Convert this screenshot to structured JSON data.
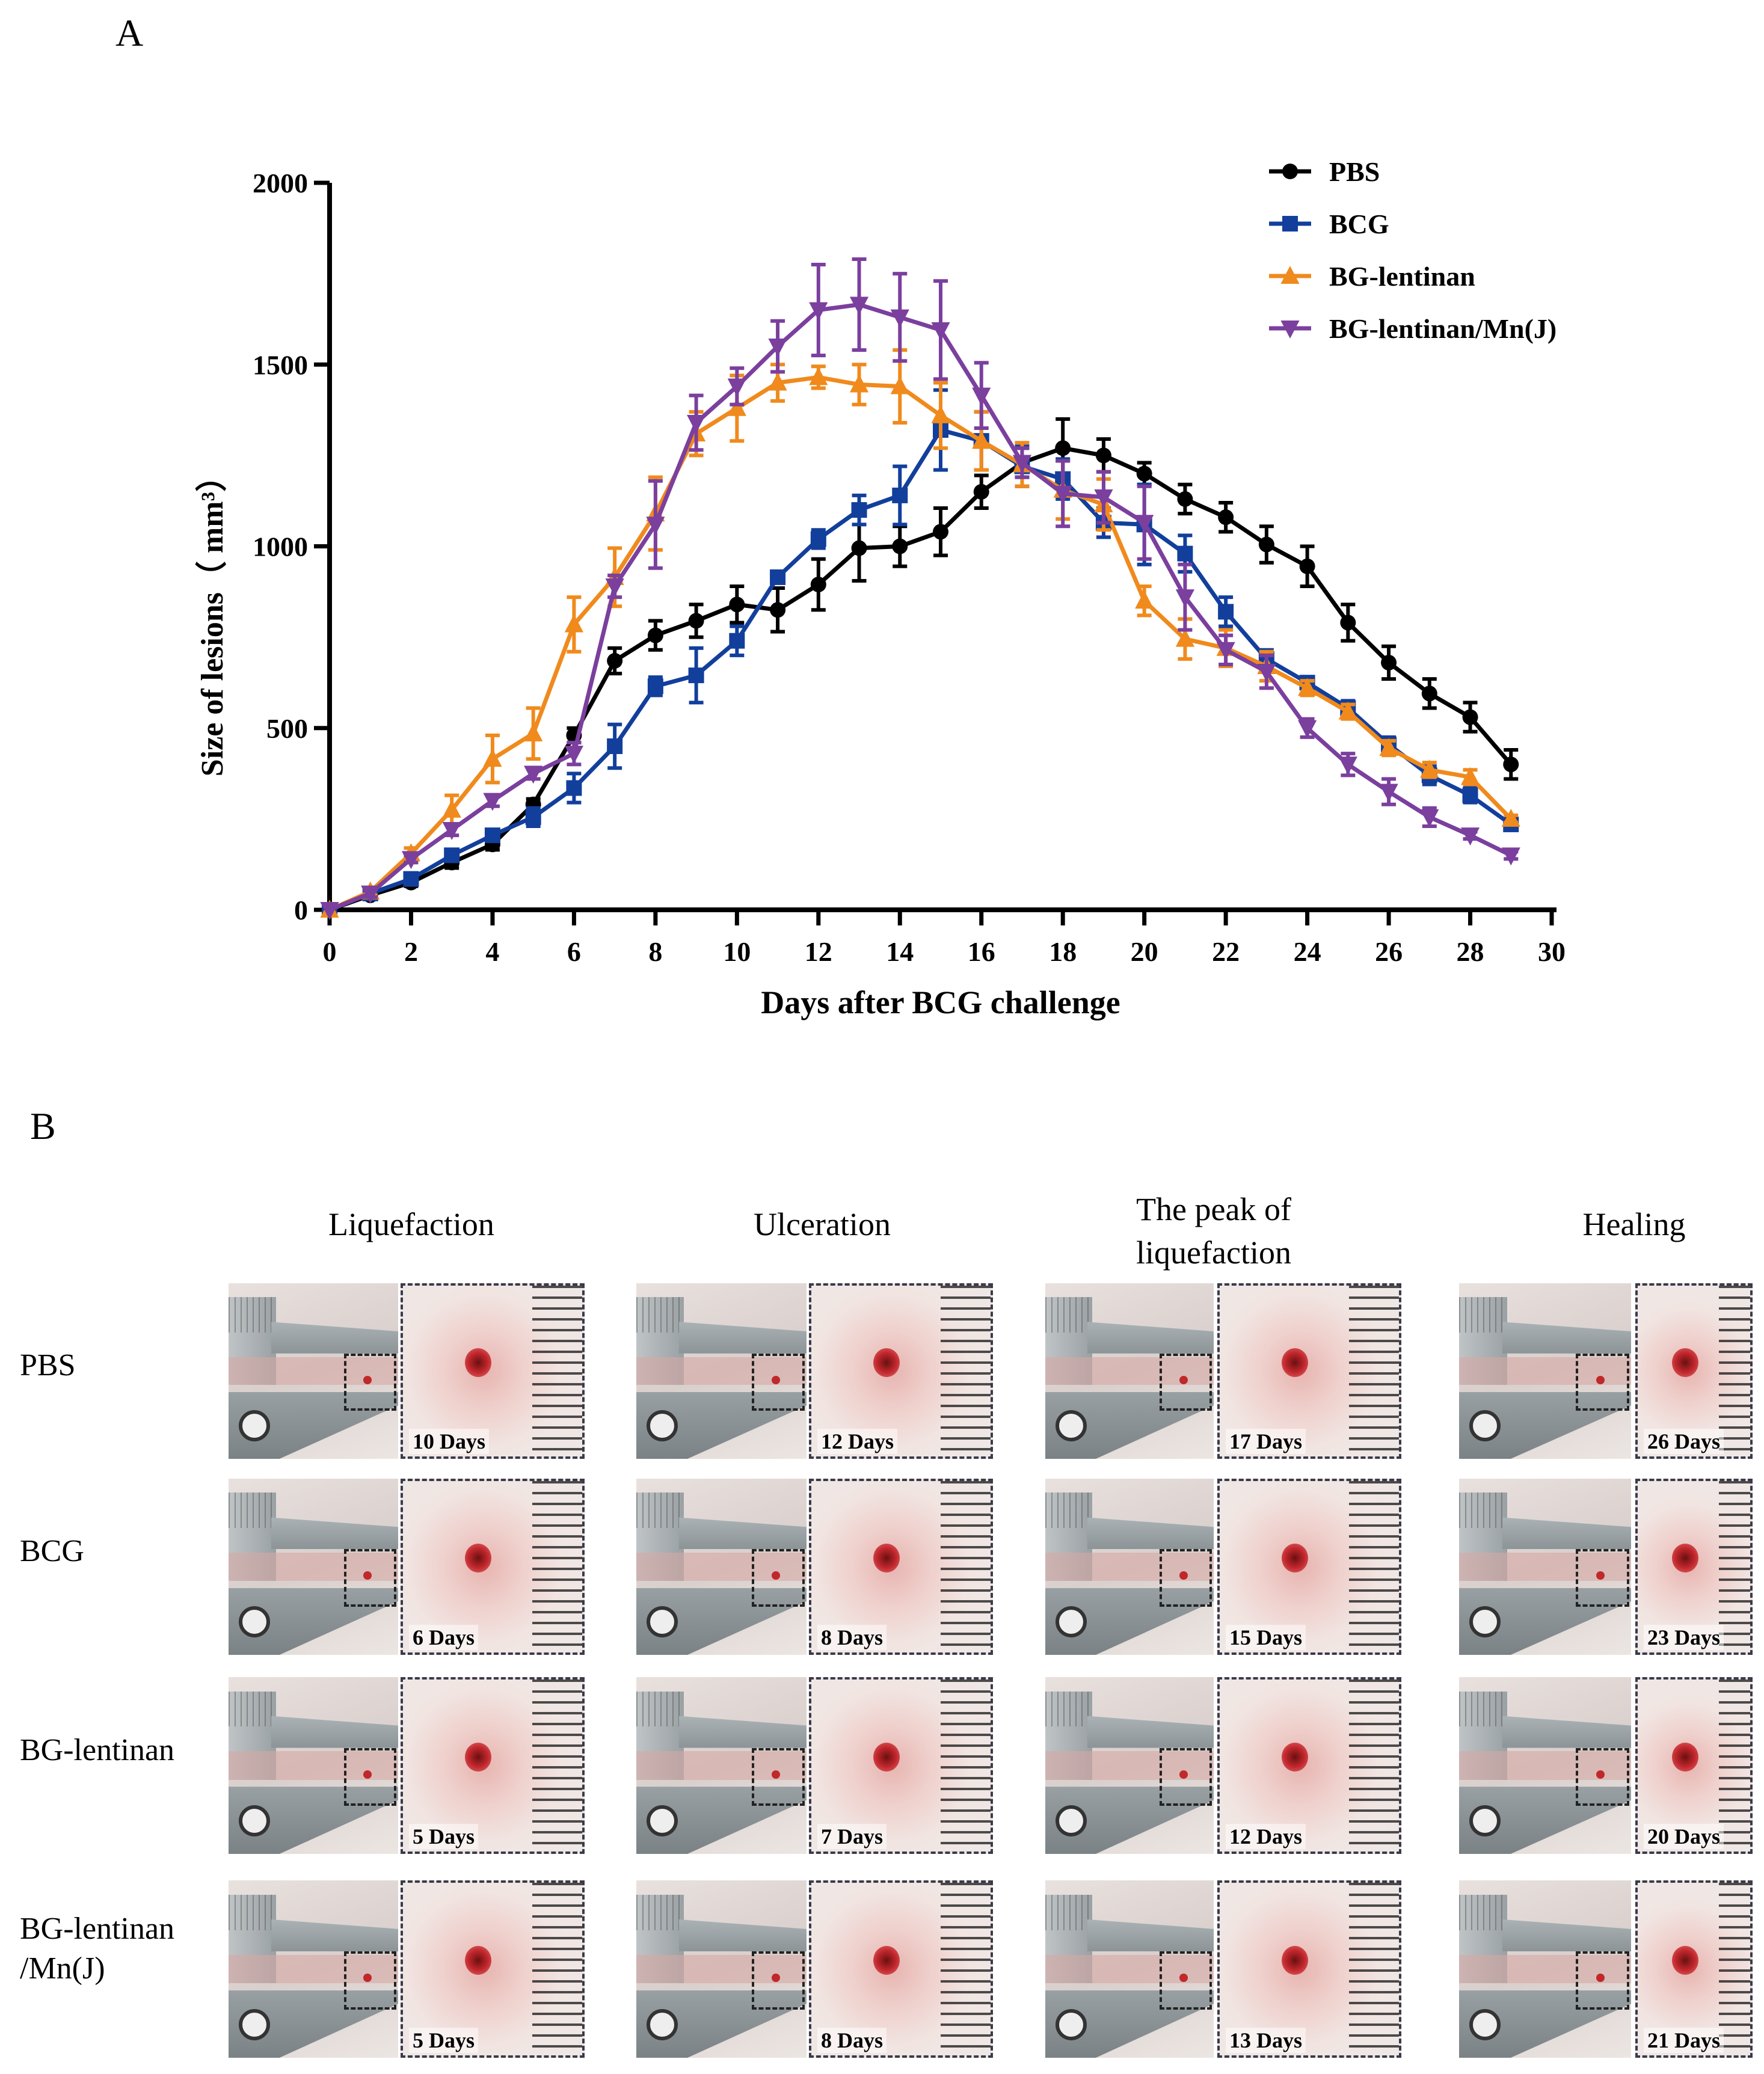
{
  "panel_a_label": "A",
  "panel_b_label": "B",
  "chart_data": {
    "type": "line",
    "title": "",
    "xlabel": "Days after BCG challenge",
    "ylabel": "Size of lesions（ mm³）",
    "xlim": [
      0,
      30
    ],
    "ylim": [
      0,
      2000
    ],
    "xticks": [
      0,
      2,
      4,
      6,
      8,
      10,
      12,
      14,
      16,
      18,
      20,
      22,
      24,
      26,
      28,
      30
    ],
    "yticks": [
      0,
      500,
      1000,
      1500,
      2000
    ],
    "legend_position": "top-right",
    "x": [
      0,
      1,
      2,
      3,
      4,
      5,
      6,
      7,
      8,
      9,
      10,
      11,
      12,
      13,
      14,
      15,
      16,
      17,
      18,
      19,
      20,
      21,
      22,
      23,
      24,
      25,
      26,
      27,
      28,
      29
    ],
    "series": [
      {
        "name": "PBS",
        "color": "#000000",
        "marker": "circle",
        "values": [
          0,
          40,
          75,
          130,
          180,
          290,
          480,
          685,
          755,
          795,
          840,
          825,
          895,
          995,
          1000,
          1040,
          1150,
          1230,
          1270,
          1250,
          1200,
          1130,
          1080,
          1005,
          945,
          790,
          680,
          595,
          530,
          400
        ],
        "errors": [
          0,
          10,
          10,
          15,
          15,
          15,
          20,
          35,
          40,
          45,
          50,
          60,
          70,
          90,
          55,
          65,
          45,
          40,
          80,
          45,
          30,
          40,
          40,
          50,
          55,
          50,
          45,
          40,
          40,
          40
        ]
      },
      {
        "name": "BCG",
        "color": "#123f9c",
        "marker": "square",
        "values": [
          0,
          45,
          85,
          150,
          205,
          255,
          335,
          450,
          615,
          645,
          740,
          915,
          1020,
          1100,
          1140,
          1320,
          1290,
          1220,
          1185,
          1065,
          1060,
          980,
          820,
          690,
          625,
          555,
          455,
          370,
          315,
          235
        ],
        "errors": [
          0,
          10,
          10,
          15,
          15,
          25,
          40,
          60,
          25,
          75,
          40,
          15,
          25,
          40,
          80,
          110,
          80,
          55,
          55,
          40,
          110,
          50,
          40,
          25,
          15,
          20,
          20,
          25,
          20,
          15
        ]
      },
      {
        "name": "BG-lentinan",
        "color": "#f08a1c",
        "marker": "triangle-up",
        "values": [
          0,
          50,
          155,
          275,
          415,
          485,
          785,
          915,
          1090,
          1310,
          1380,
          1450,
          1465,
          1445,
          1440,
          1360,
          1290,
          1225,
          1155,
          1115,
          850,
          745,
          720,
          670,
          610,
          545,
          445,
          385,
          365,
          250
        ],
        "errors": [
          0,
          10,
          15,
          40,
          65,
          70,
          75,
          80,
          100,
          60,
          90,
          50,
          30,
          55,
          100,
          90,
          80,
          60,
          80,
          70,
          40,
          55,
          50,
          40,
          20,
          20,
          20,
          20,
          20,
          10
        ]
      },
      {
        "name": "BG-lentinan/Mn(J)",
        "color": "#7b3f9e",
        "marker": "triangle-down",
        "values": [
          0,
          45,
          140,
          220,
          300,
          375,
          430,
          890,
          1060,
          1340,
          1440,
          1550,
          1650,
          1665,
          1630,
          1595,
          1415,
          1230,
          1145,
          1135,
          1065,
          860,
          715,
          655,
          500,
          400,
          325,
          255,
          205,
          150
        ],
        "errors": [
          0,
          10,
          10,
          15,
          15,
          15,
          30,
          30,
          120,
          75,
          50,
          70,
          125,
          125,
          120,
          135,
          90,
          40,
          90,
          70,
          100,
          90,
          40,
          45,
          25,
          30,
          35,
          25,
          10,
          10
        ]
      }
    ]
  },
  "panel_b": {
    "columns": [
      "Liquefaction",
      "Ulceration",
      "The peak of\nliquefaction",
      "Healing"
    ],
    "rows": [
      {
        "label": "PBS",
        "days": [
          "10 Days",
          "12 Days",
          "17 Days",
          "26 Days"
        ]
      },
      {
        "label": "BCG",
        "days": [
          "6  Days",
          "8  Days",
          "15 Days",
          "23 Days"
        ]
      },
      {
        "label": "BG-lentinan",
        "days": [
          "5  Days",
          "7  Days",
          "12 Days",
          "20 Days"
        ]
      },
      {
        "label": "BG-lentinan\n/Mn(J)",
        "days": [
          "5  Days",
          "8  Days",
          "13 Days",
          "21 Days"
        ]
      }
    ]
  }
}
